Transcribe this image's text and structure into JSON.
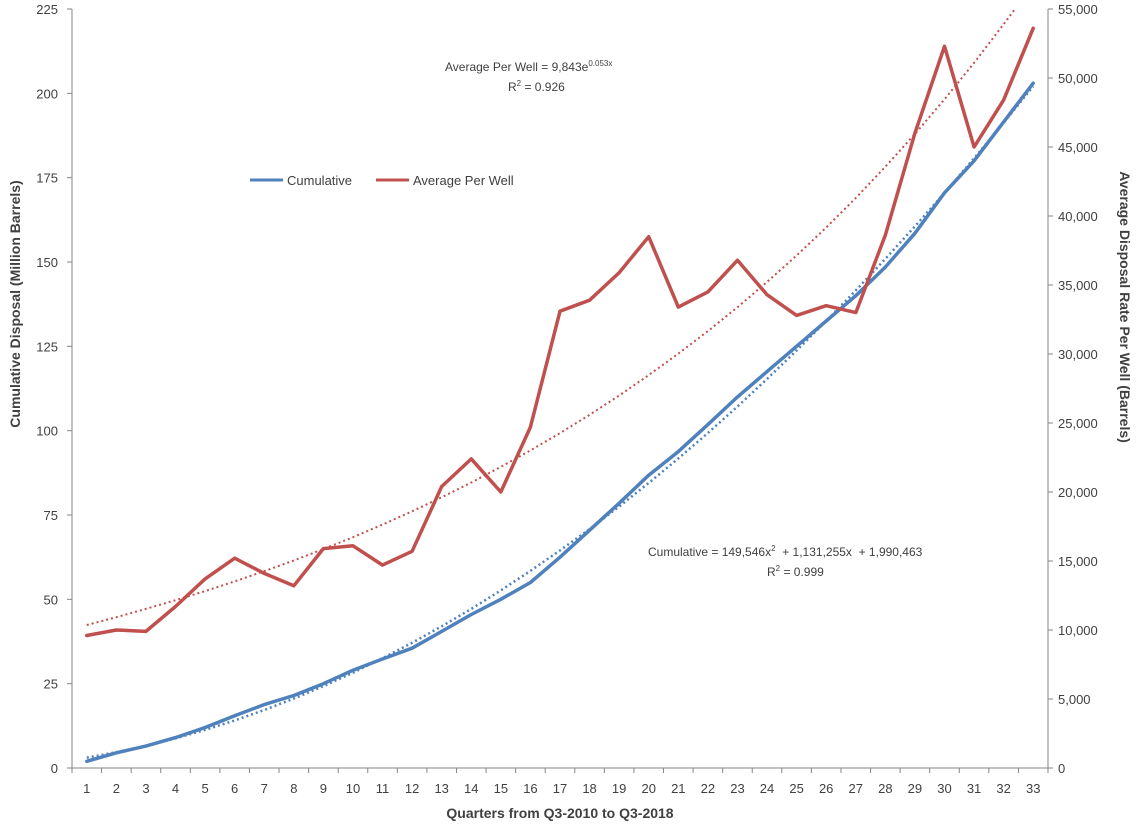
{
  "chart_data": {
    "type": "line",
    "title": "",
    "xlabel": "Quarters from Q3-2010 to Q3-2018",
    "ylabel_left": "Cumulative Disposal (Million Barrels)",
    "ylabel_right": "Average Disposal Rate Per Well (Barrels)",
    "x": [
      1,
      2,
      3,
      4,
      5,
      6,
      7,
      8,
      9,
      10,
      11,
      12,
      13,
      14,
      15,
      16,
      17,
      18,
      19,
      20,
      21,
      22,
      23,
      24,
      25,
      26,
      27,
      28,
      29,
      30,
      31,
      32,
      33
    ],
    "ylim_left": [
      0,
      225
    ],
    "yticks_left": [
      "0",
      "25",
      "50",
      "75",
      "100",
      "125",
      "150",
      "175",
      "200",
      "225"
    ],
    "ylim_right": [
      0,
      55000
    ],
    "yticks_right": [
      "0",
      "5,000",
      "10,000",
      "15,000",
      "20,000",
      "25,000",
      "30,000",
      "35,000",
      "40,000",
      "45,000",
      "50,000",
      "55,000"
    ],
    "grid": false,
    "legend_position": "upper-left",
    "series": [
      {
        "name": "Cumulative",
        "axis": "left",
        "color": "#4F81BD",
        "values": [
          2,
          4.5,
          6.5,
          9,
          12,
          15.5,
          18.8,
          21.5,
          25,
          29,
          32.3,
          35.5,
          40.5,
          45.5,
          50,
          55,
          62.5,
          70.5,
          78.5,
          86.8,
          93.8,
          101.8,
          110,
          117.5,
          125,
          132.5,
          140,
          148.5,
          158.5,
          170.5,
          180,
          191.5,
          203
        ]
      },
      {
        "name": "Average Per Well",
        "axis": "right",
        "color": "#C0504D",
        "values": [
          9600,
          10000,
          9900,
          11700,
          13700,
          15200,
          14100,
          13200,
          15900,
          16100,
          14700,
          15700,
          20400,
          22400,
          20000,
          24700,
          33100,
          33900,
          35900,
          38500,
          33400,
          34500,
          36800,
          34300,
          32800,
          33500,
          33000,
          38600,
          46000,
          52300,
          45000,
          48400,
          53600
        ]
      }
    ],
    "trendlines": [
      {
        "series": "Cumulative",
        "type": "polynomial",
        "color": "#4F81BD",
        "equation_label": "Cumulative = 149,546x",
        "equation_sup": "2",
        "equation_tail": "  + 1,131,255x  + 1,990,463",
        "r2_label": "R",
        "r2_sup": "2",
        "r2_value": " = 0.999"
      },
      {
        "series": "Average Per Well",
        "type": "exponential",
        "color": "#C0504D",
        "equation_label": "Average Per Well = 9,843e",
        "equation_sup": "0.053x",
        "r2_label": "R",
        "r2_sup": "2",
        "r2_value": " = 0.926"
      }
    ]
  }
}
